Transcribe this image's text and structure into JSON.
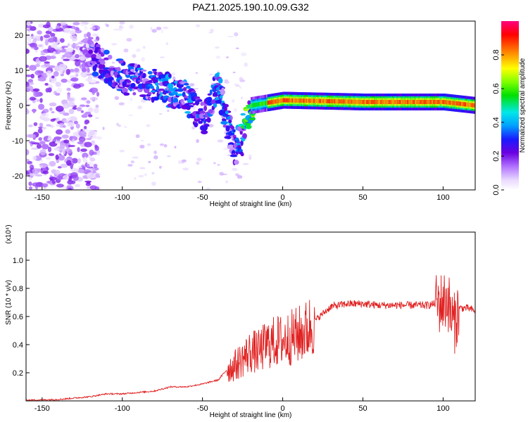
{
  "title": "PAZ1.2025.190.10.09.G32",
  "chart_data": [
    {
      "type": "heatmap",
      "xlabel": "Height of straight line (km)",
      "ylabel": "Frequency (Hz)",
      "xlim": [
        -160,
        120
      ],
      "ylim": [
        -24,
        24
      ],
      "xticks": [
        -150,
        -100,
        -50,
        0,
        50,
        100
      ],
      "yticks": [
        -20,
        -10,
        0,
        10,
        20
      ],
      "colorbar": {
        "label": "Normalized spectral amplitude",
        "range": [
          0,
          1
        ],
        "ticks": [
          "0.0",
          "0.2",
          "0.4",
          "0.6",
          "0.8"
        ],
        "colormap": [
          "#ffffff",
          "#e8d8ff",
          "#b070ff",
          "#6a00e0",
          "#1a1aff",
          "#00a0ff",
          "#00e8e8",
          "#00e000",
          "#80ff00",
          "#ffff00",
          "#ff8000",
          "#ff0000",
          "#ff0080"
        ]
      },
      "ridge": {
        "description_points": [
          {
            "x": -120,
            "freq": 14,
            "amp": 0.3
          },
          {
            "x": -100,
            "freq": 8,
            "amp": 0.3
          },
          {
            "x": -80,
            "freq": 6,
            "amp": 0.35
          },
          {
            "x": -60,
            "freq": 2,
            "amp": 0.35
          },
          {
            "x": -50,
            "freq": -4,
            "amp": 0.3
          },
          {
            "x": -40,
            "freq": 6,
            "amp": 0.35
          },
          {
            "x": -30,
            "freq": -14,
            "amp": 0.25
          },
          {
            "x": -20,
            "freq": 0,
            "amp": 0.6
          },
          {
            "x": 0,
            "freq": 1.5,
            "amp": 0.8
          },
          {
            "x": 50,
            "freq": 1,
            "amp": 0.9
          },
          {
            "x": 100,
            "freq": 1,
            "amp": 0.85
          },
          {
            "x": 120,
            "freq": 0,
            "amp": 0.9
          }
        ]
      }
    },
    {
      "type": "line",
      "xlabel": "Height of straight line (km)",
      "ylabel": "SNR (10 * v/v)",
      "scale_label": "(x10⁴)",
      "xlim": [
        -160,
        120
      ],
      "ylim": [
        0,
        1.2
      ],
      "xticks": [
        -150,
        -100,
        -50,
        0,
        50,
        100
      ],
      "yticks": [
        "0.2",
        "0.4",
        "0.6",
        "0.8",
        "1.0"
      ],
      "yticks_values": [
        0.2,
        0.4,
        0.6,
        0.8,
        1.0
      ],
      "series": [
        {
          "color": "#e02020",
          "x": [
            -160,
            -140,
            -120,
            -110,
            -100,
            -90,
            -80,
            -70,
            -60,
            -50,
            -40,
            -35,
            -30,
            -25,
            -20,
            -15,
            -10,
            -5,
            0,
            5,
            10,
            15,
            20,
            25,
            30,
            40,
            50,
            60,
            70,
            80,
            90,
            95,
            100,
            103,
            105,
            107,
            110,
            115,
            120
          ],
          "y": [
            0.005,
            0.01,
            0.03,
            0.05,
            0.05,
            0.06,
            0.07,
            0.1,
            0.1,
            0.12,
            0.15,
            0.22,
            0.25,
            0.3,
            0.35,
            0.35,
            0.4,
            0.42,
            0.43,
            0.45,
            0.47,
            0.5,
            0.57,
            0.62,
            0.67,
            0.69,
            0.69,
            0.68,
            0.68,
            0.68,
            0.68,
            0.69,
            0.7,
            0.72,
            0.6,
            0.55,
            0.66,
            0.66,
            0.64
          ]
        }
      ]
    }
  ]
}
